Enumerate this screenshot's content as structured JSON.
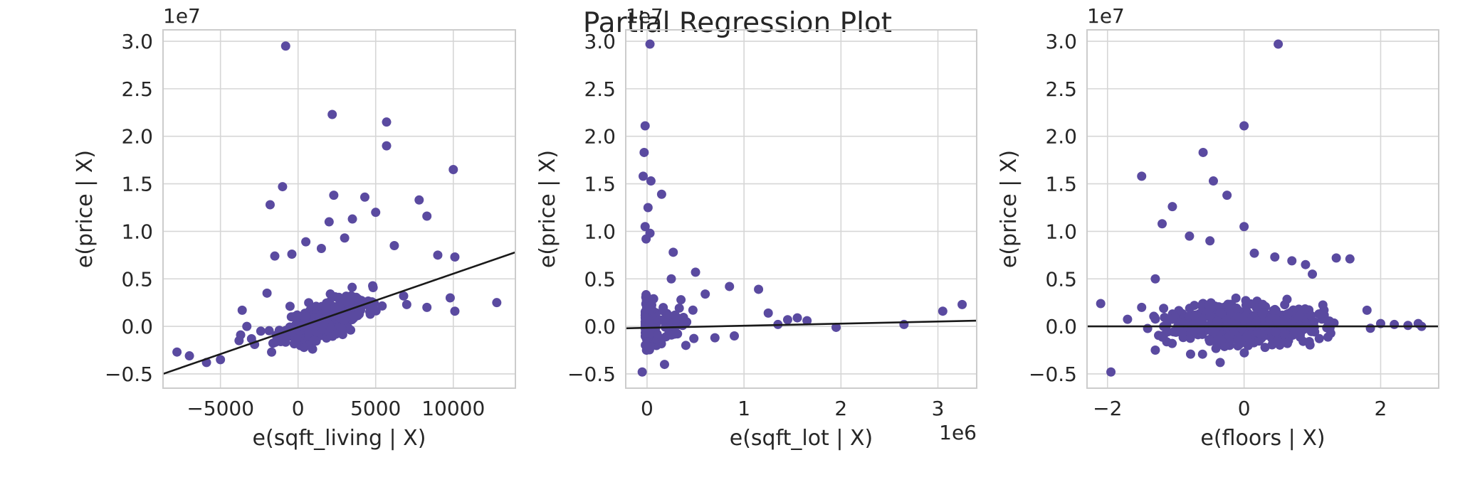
{
  "figure": {
    "title": "Partial Regression Plot",
    "background": "#ffffff"
  },
  "style": {
    "point_color": "#5a4aa0",
    "line_color": "#1a1a1a",
    "grid_color": "#d6d6d6",
    "spine_color": "#cccccc",
    "text_color": "#262626"
  },
  "chart_data": [
    {
      "type": "scatter",
      "xlabel": "e(sqft_living | X)",
      "ylabel": "e(price | X)",
      "y_offset_label": "1e7",
      "x_offset_label": "",
      "xlim": [
        -8700,
        14000
      ],
      "ylim": [
        -6500000,
        31200000
      ],
      "xticks": [
        {
          "v": -5000,
          "label": "−5000"
        },
        {
          "v": 0,
          "label": "0"
        },
        {
          "v": 5000,
          "label": "5000"
        },
        {
          "v": 10000,
          "label": "10000"
        }
      ],
      "yticks": [
        {
          "v": -5000000,
          "label": "−0.5"
        },
        {
          "v": 0,
          "label": "0.0"
        },
        {
          "v": 5000000,
          "label": "0.5"
        },
        {
          "v": 10000000,
          "label": "1.0"
        },
        {
          "v": 15000000,
          "label": "1.5"
        },
        {
          "v": 20000000,
          "label": "2.0"
        },
        {
          "v": 25000000,
          "label": "2.5"
        },
        {
          "v": 30000000,
          "label": "3.0"
        }
      ],
      "fit_line": {
        "x": [
          -8700,
          14000
        ],
        "y": [
          -5000000,
          7800000
        ]
      },
      "cluster": {
        "x_center": 1800,
        "x_spread": 1300,
        "y_center": 800000,
        "y_spread": 900000,
        "n": 450,
        "seed": 11,
        "slope": 560
      },
      "points": [
        {
          "x": -800,
          "y": 29500000
        },
        {
          "x": 2200,
          "y": 22300000
        },
        {
          "x": 5700,
          "y": 21500000
        },
        {
          "x": 5700,
          "y": 19000000
        },
        {
          "x": 10000,
          "y": 16500000
        },
        {
          "x": -1000,
          "y": 14700000
        },
        {
          "x": 2300,
          "y": 13800000
        },
        {
          "x": 4300,
          "y": 13600000
        },
        {
          "x": 7800,
          "y": 13300000
        },
        {
          "x": -1800,
          "y": 12800000
        },
        {
          "x": 8300,
          "y": 11600000
        },
        {
          "x": 2000,
          "y": 11000000
        },
        {
          "x": 5000,
          "y": 12000000
        },
        {
          "x": 3500,
          "y": 11300000
        },
        {
          "x": 9000,
          "y": 7500000
        },
        {
          "x": 10100,
          "y": 7300000
        },
        {
          "x": 6200,
          "y": 8500000
        },
        {
          "x": 6800,
          "y": 3200000
        },
        {
          "x": 7000,
          "y": 2300000
        },
        {
          "x": 8300,
          "y": 2000000
        },
        {
          "x": 9800,
          "y": 3000000
        },
        {
          "x": 10100,
          "y": 1600000
        },
        {
          "x": 12800,
          "y": 2500000
        },
        {
          "x": -1500,
          "y": 7400000
        },
        {
          "x": -400,
          "y": 7600000
        },
        {
          "x": 500,
          "y": 8900000
        },
        {
          "x": 1500,
          "y": 8200000
        },
        {
          "x": 3000,
          "y": 9300000
        },
        {
          "x": -7800,
          "y": -2700000
        },
        {
          "x": -7000,
          "y": -3100000
        },
        {
          "x": -5900,
          "y": -3800000
        },
        {
          "x": -5000,
          "y": -3500000
        },
        {
          "x": -3600,
          "y": 1700000
        },
        {
          "x": -3300,
          "y": 0
        },
        {
          "x": -3000,
          "y": -1300000
        },
        {
          "x": -2400,
          "y": -500000
        },
        {
          "x": -3700,
          "y": -900000
        },
        {
          "x": -3800,
          "y": -1500000
        },
        {
          "x": -2800,
          "y": -1900000
        },
        {
          "x": -2000,
          "y": 3500000
        }
      ]
    },
    {
      "type": "scatter",
      "xlabel": "e(sqft_lot | X)",
      "ylabel": "e(price | X)",
      "y_offset_label": "1e7",
      "x_offset_label": "1e6",
      "xlim": [
        -220000,
        3400000
      ],
      "ylim": [
        -6500000,
        31200000
      ],
      "xticks": [
        {
          "v": 0,
          "label": "0"
        },
        {
          "v": 1000000,
          "label": "1"
        },
        {
          "v": 2000000,
          "label": "2"
        },
        {
          "v": 3000000,
          "label": "3"
        }
      ],
      "yticks": [
        {
          "v": -5000000,
          "label": "−0.5"
        },
        {
          "v": 0,
          "label": "0.0"
        },
        {
          "v": 5000000,
          "label": "0.5"
        },
        {
          "v": 10000000,
          "label": "1.0"
        },
        {
          "v": 15000000,
          "label": "1.5"
        },
        {
          "v": 20000000,
          "label": "2.0"
        },
        {
          "v": 25000000,
          "label": "2.5"
        },
        {
          "v": 30000000,
          "label": "3.0"
        }
      ],
      "fit_line": {
        "x": [
          -220000,
          3400000
        ],
        "y": [
          -200000,
          600000
        ]
      },
      "cluster": {
        "x_center": 60000,
        "x_spread": 90000,
        "y_center": 300000,
        "y_spread": 1100000,
        "n": 320,
        "seed": 23,
        "slope": 0
      },
      "points": [
        {
          "x": 30000,
          "y": 29700000
        },
        {
          "x": -20000,
          "y": 21100000
        },
        {
          "x": -30000,
          "y": 18300000
        },
        {
          "x": -40000,
          "y": 15800000
        },
        {
          "x": 40000,
          "y": 15300000
        },
        {
          "x": 150000,
          "y": 13900000
        },
        {
          "x": 10000,
          "y": 12500000
        },
        {
          "x": -20000,
          "y": 10500000
        },
        {
          "x": 30000,
          "y": 9800000
        },
        {
          "x": -10000,
          "y": 9200000
        },
        {
          "x": 270000,
          "y": 7800000
        },
        {
          "x": 500000,
          "y": 5700000
        },
        {
          "x": 600000,
          "y": 3400000
        },
        {
          "x": 850000,
          "y": 4200000
        },
        {
          "x": 1150000,
          "y": 3900000
        },
        {
          "x": 1250000,
          "y": 1400000
        },
        {
          "x": 1450000,
          "y": 700000
        },
        {
          "x": 1550000,
          "y": 900000
        },
        {
          "x": 1650000,
          "y": 600000
        },
        {
          "x": 1350000,
          "y": 200000
        },
        {
          "x": 1950000,
          "y": -100000
        },
        {
          "x": 2650000,
          "y": 200000
        },
        {
          "x": 3050000,
          "y": 1600000
        },
        {
          "x": 3250000,
          "y": 2300000
        },
        {
          "x": 180000,
          "y": -4000000
        },
        {
          "x": -50000,
          "y": -4800000
        },
        {
          "x": 400000,
          "y": -2000000
        },
        {
          "x": 700000,
          "y": -1200000
        },
        {
          "x": 900000,
          "y": -1000000
        },
        {
          "x": 350000,
          "y": 2800000
        },
        {
          "x": 250000,
          "y": 5000000
        }
      ]
    },
    {
      "type": "scatter",
      "xlabel": "e(floors | X)",
      "ylabel": "e(price | X)",
      "y_offset_label": "1e7",
      "x_offset_label": "",
      "xlim": [
        -2.3,
        2.85
      ],
      "ylim": [
        -6500000,
        31200000
      ],
      "xticks": [
        {
          "v": -2,
          "label": "−2"
        },
        {
          "v": 0,
          "label": "0"
        },
        {
          "v": 2,
          "label": "2"
        }
      ],
      "yticks": [
        {
          "v": -5000000,
          "label": "−0.5"
        },
        {
          "v": 0,
          "label": "0.0"
        },
        {
          "v": 5000000,
          "label": "0.5"
        },
        {
          "v": 10000000,
          "label": "1.0"
        },
        {
          "v": 15000000,
          "label": "1.5"
        },
        {
          "v": 20000000,
          "label": "2.0"
        },
        {
          "v": 25000000,
          "label": "2.5"
        },
        {
          "v": 30000000,
          "label": "3.0"
        }
      ],
      "fit_line": {
        "x": [
          -2.3,
          2.85
        ],
        "y": [
          0,
          0
        ]
      },
      "cluster": {
        "x_center": 0,
        "x_spread": 0.55,
        "y_center": 300000,
        "y_spread": 1100000,
        "n": 500,
        "seed": 37,
        "slope": 0
      },
      "points": [
        {
          "x": 0.5,
          "y": 29700000
        },
        {
          "x": 0.0,
          "y": 21100000
        },
        {
          "x": -0.6,
          "y": 18300000
        },
        {
          "x": -1.5,
          "y": 15800000
        },
        {
          "x": -0.45,
          "y": 15300000
        },
        {
          "x": -0.25,
          "y": 13800000
        },
        {
          "x": -1.05,
          "y": 12600000
        },
        {
          "x": -1.2,
          "y": 10800000
        },
        {
          "x": 0.0,
          "y": 10500000
        },
        {
          "x": -0.8,
          "y": 9500000
        },
        {
          "x": -0.5,
          "y": 9000000
        },
        {
          "x": -2.1,
          "y": 2400000
        },
        {
          "x": -1.95,
          "y": -4800000
        },
        {
          "x": -0.35,
          "y": -3800000
        },
        {
          "x": 1.35,
          "y": 7200000
        },
        {
          "x": 1.55,
          "y": 7100000
        },
        {
          "x": 0.45,
          "y": 7300000
        },
        {
          "x": 0.7,
          "y": 6900000
        },
        {
          "x": 0.15,
          "y": 7700000
        },
        {
          "x": 1.0,
          "y": 5500000
        },
        {
          "x": 1.8,
          "y": 1700000
        },
        {
          "x": 2.0,
          "y": 300000
        },
        {
          "x": 2.2,
          "y": 200000
        },
        {
          "x": 2.55,
          "y": 300000
        },
        {
          "x": 2.6,
          "y": 0
        },
        {
          "x": 2.4,
          "y": 100000
        },
        {
          "x": 1.85,
          "y": -200000
        },
        {
          "x": -1.3,
          "y": -2500000
        },
        {
          "x": -1.5,
          "y": 2000000
        },
        {
          "x": -1.3,
          "y": 5000000
        },
        {
          "x": 0.9,
          "y": 6500000
        }
      ]
    }
  ]
}
